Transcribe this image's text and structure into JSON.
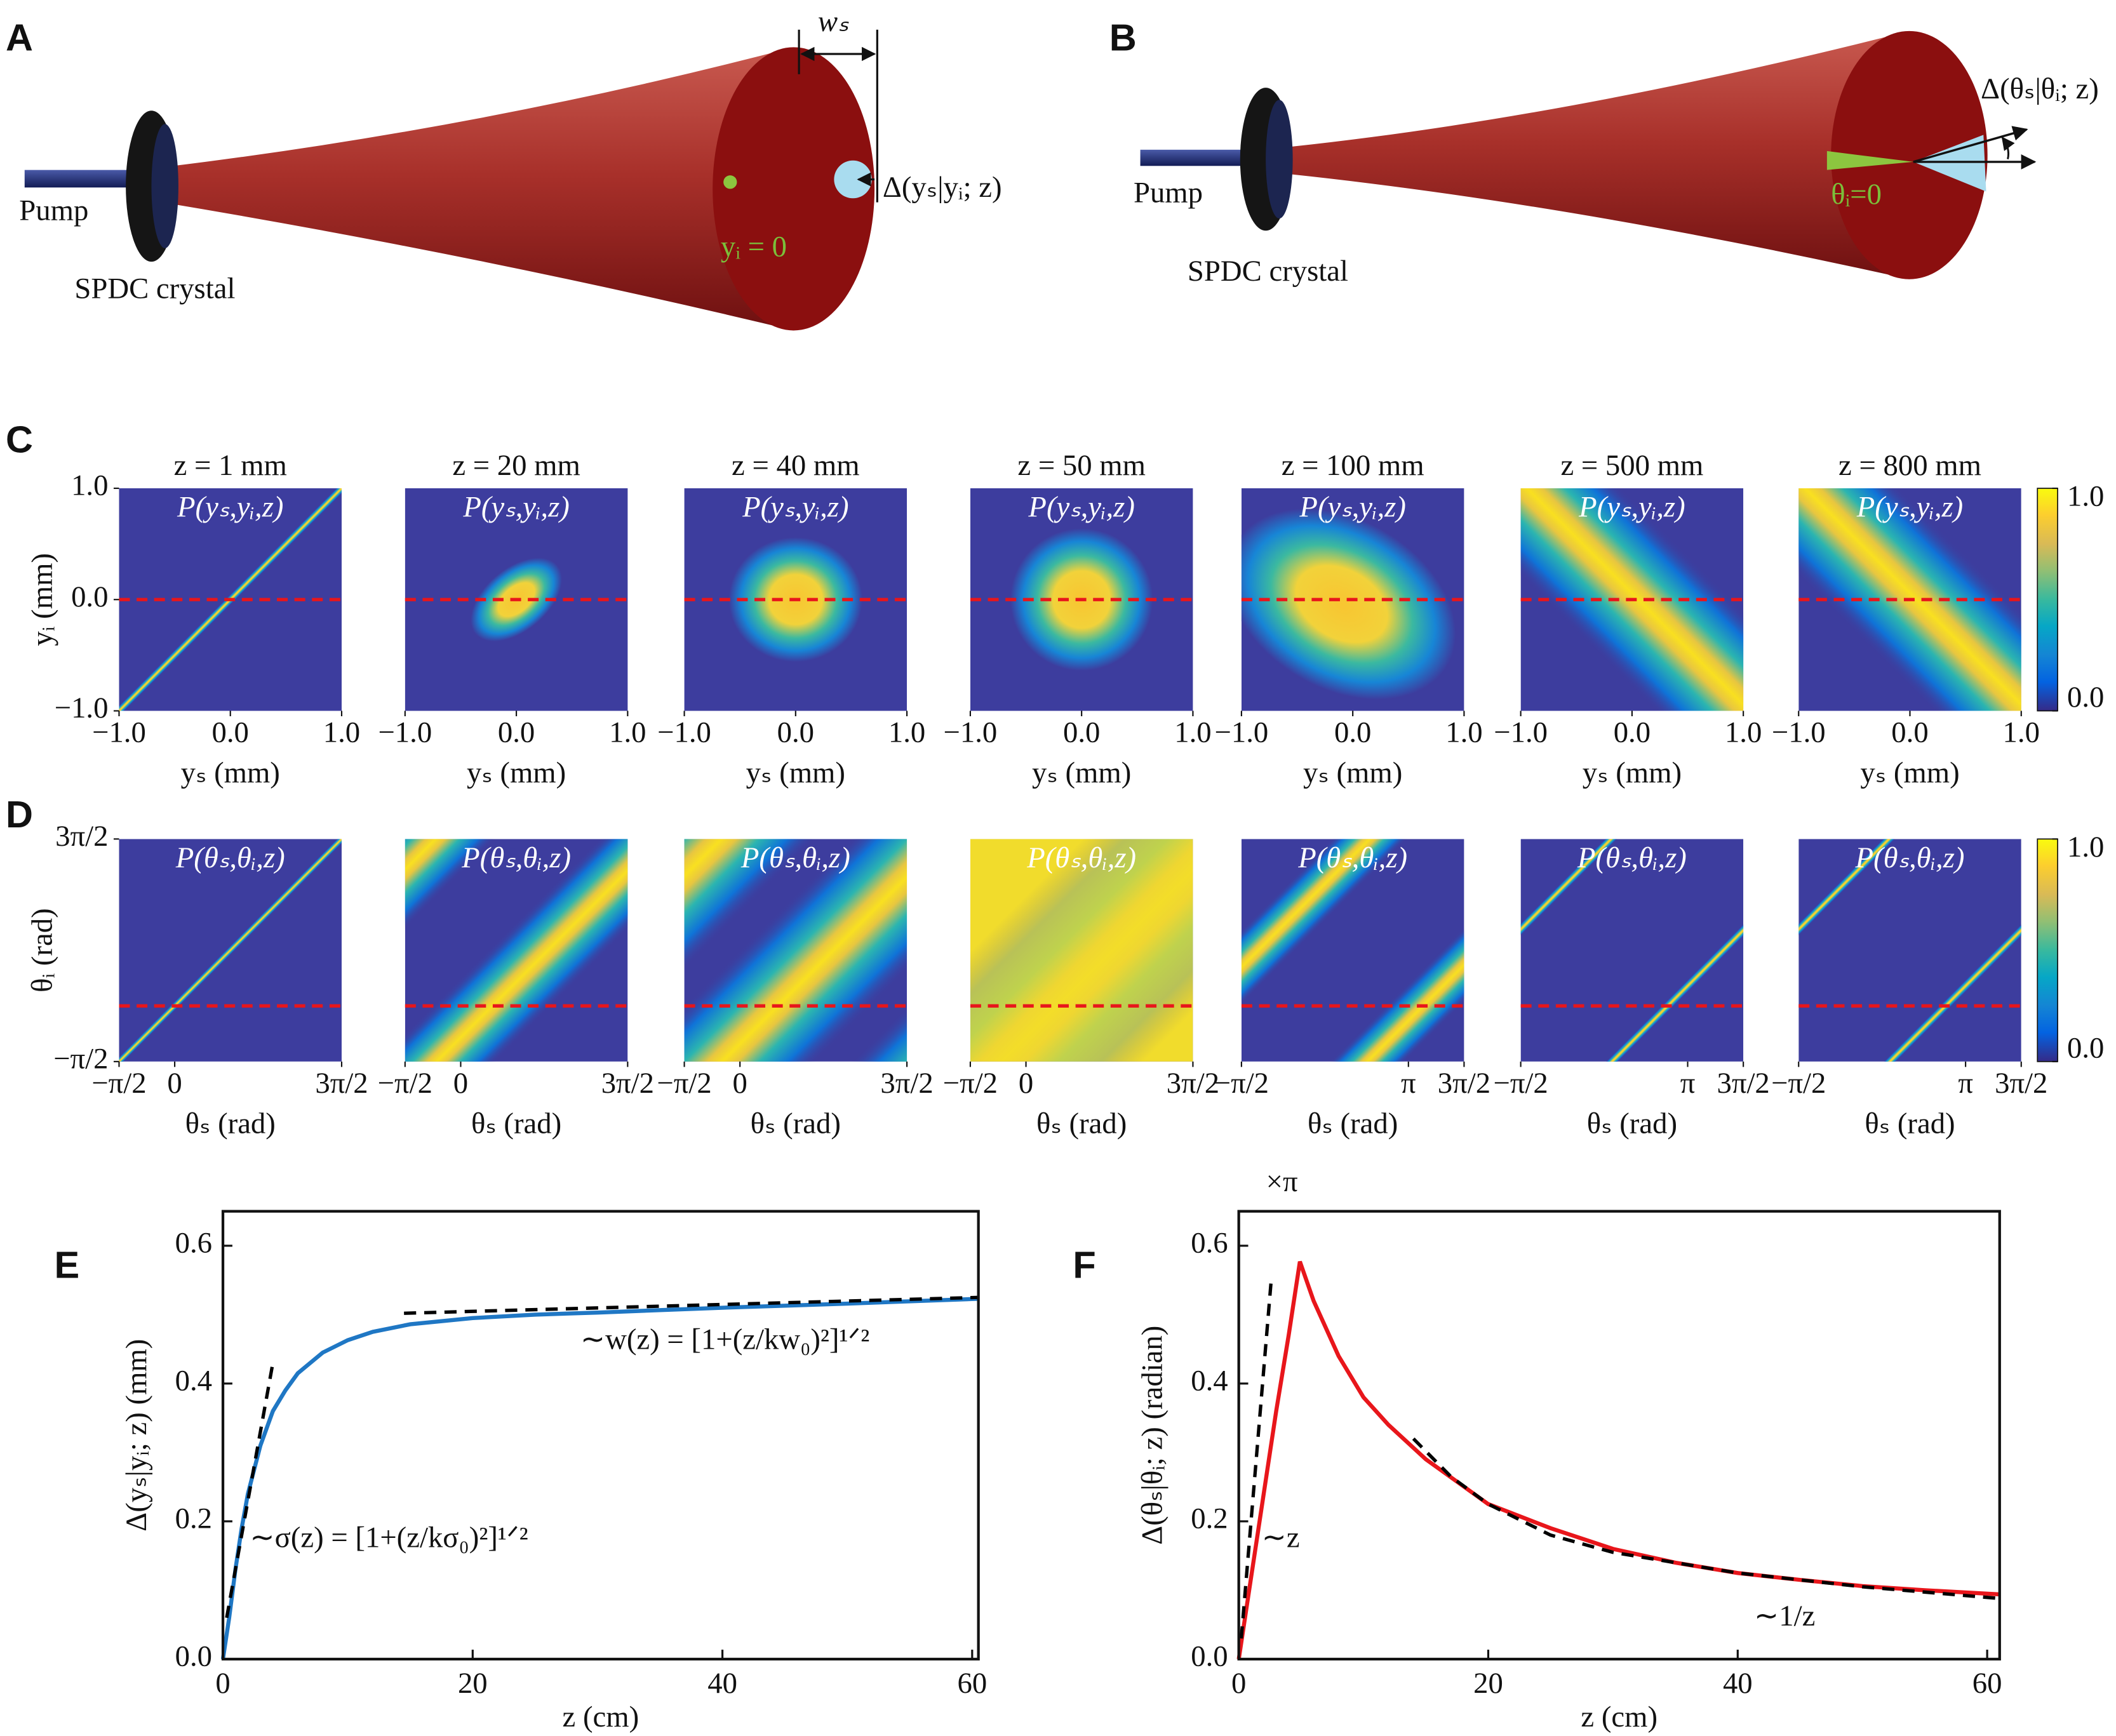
{
  "panel_a": {
    "letter": "A",
    "pump": "Pump",
    "crystal": "SPDC crystal",
    "width_label": "wₛ",
    "delta_label": "Δ(yₛ|yᵢ; z)",
    "origin_label": "yᵢ = 0"
  },
  "panel_b": {
    "letter": "B",
    "pump": "Pump",
    "crystal": "SPDC crystal",
    "delta_label": "Δ(θₛ|θᵢ; z)",
    "origin_label": "θᵢ=0"
  },
  "panel_c": {
    "letter": "C",
    "titles": [
      "z = 1 mm",
      "z = 20 mm",
      "z = 40 mm",
      "z = 50 mm",
      "z = 100 mm",
      "z = 500 mm",
      "z = 800 mm"
    ],
    "map_label": "P(yₛ,yᵢ,z)",
    "ylabel": "yᵢ (mm)",
    "xlabel": "yₛ (mm)",
    "lim": [
      -1,
      1
    ],
    "ticks": [
      {
        "value": -1,
        "label": "−1.0"
      },
      {
        "value": 0,
        "label": "0.0"
      },
      {
        "value": 1,
        "label": "1.0"
      }
    ],
    "colorbar_ticks": [
      {
        "value": 0,
        "label": "0.0"
      },
      {
        "value": 1,
        "label": "1.0"
      }
    ]
  },
  "panel_d": {
    "letter": "D",
    "map_label": "P(θₛ,θᵢ,z)",
    "ylabel": "θᵢ (rad)",
    "xlabel": "θₛ (rad)",
    "lim": [
      -1.5708,
      4.7124
    ],
    "yticks": [
      {
        "value": -1.5708,
        "label": "−π/2"
      },
      {
        "value": 4.7124,
        "label": "3π/2"
      }
    ],
    "xticks_near": [
      {
        "value": -1.5708,
        "label": "−π/2"
      },
      0,
      {
        "value": 4.7124,
        "label": "3π/2"
      }
    ],
    "xticks_far": [
      {
        "value": -1.5708,
        "label": "−π/2"
      },
      {
        "value": 3.1416,
        "label": "π"
      },
      {
        "value": 4.7124,
        "label": "3π/2"
      }
    ],
    "colorbar_ticks": [
      {
        "value": 0,
        "label": "0.0"
      },
      {
        "value": 1,
        "label": "1.0"
      }
    ]
  },
  "chart_data": [
    {
      "type": "line",
      "letter": "E",
      "xlabel": "z (cm)",
      "ylabel": "Δ(yₛ|yᵢ; z) (mm)",
      "xlim": [
        0,
        60.5
      ],
      "ylim": [
        0,
        0.65
      ],
      "xticks": [
        0,
        20,
        40,
        60
      ],
      "yticks": [
        {
          "value": 0,
          "label": "0.0"
        },
        0.2,
        0.4,
        0.6
      ],
      "series": [
        {
          "color": "#1f77c4",
          "dashed": false,
          "x": [
            0,
            0.5,
            1,
            1.5,
            2,
            3,
            4,
            5,
            6,
            8,
            10,
            12,
            15,
            20,
            25,
            30,
            40,
            50,
            60.5
          ],
          "values": [
            0,
            0.06,
            0.13,
            0.19,
            0.24,
            0.31,
            0.36,
            0.39,
            0.415,
            0.445,
            0.463,
            0.475,
            0.486,
            0.495,
            0.5,
            0.503,
            0.51,
            0.516,
            0.523
          ]
        },
        {
          "color": "#000000",
          "dashed": true,
          "x": [
            0.3,
            4
          ],
          "values": [
            0.06,
            0.43
          ]
        },
        {
          "color": "#000000",
          "dashed": true,
          "x": [
            14.5,
            60.5
          ],
          "values": [
            0.502,
            0.525
          ]
        }
      ],
      "annotations": [
        "∼w(z) = [1+(z/kw₀)²]¹ᐟ²",
        "∼σ(z) = [1+(z/kσ₀)²]¹ᐟ²"
      ]
    },
    {
      "type": "line",
      "letter": "F",
      "xlabel": "z (cm)",
      "ylabel": "Δ(θₛ|θᵢ; z)  (radian)",
      "multiplier": "×π",
      "xlim": [
        0,
        61
      ],
      "ylim": [
        0,
        0.65
      ],
      "xticks": [
        0,
        20,
        40,
        60
      ],
      "yticks": [
        {
          "value": 0,
          "label": "0.0"
        },
        0.2,
        0.4,
        0.6
      ],
      "series": [
        {
          "color": "#e8161b",
          "dashed": false,
          "x": [
            0,
            1,
            2,
            3,
            4,
            4.9,
            6,
            8,
            10,
            12,
            15,
            20,
            25,
            30,
            35,
            40,
            45,
            50,
            55,
            61
          ],
          "values": [
            0,
            0.12,
            0.24,
            0.36,
            0.47,
            0.577,
            0.52,
            0.44,
            0.38,
            0.34,
            0.29,
            0.225,
            0.19,
            0.16,
            0.14,
            0.125,
            0.115,
            0.106,
            0.1,
            0.094
          ]
        },
        {
          "color": "#000000",
          "dashed": true,
          "x": [
            0.2,
            2.6
          ],
          "values": [
            0.03,
            0.55
          ]
        },
        {
          "color": "#000000",
          "dashed": true,
          "x": [
            14,
            17,
            20,
            25,
            30,
            40,
            50,
            61
          ],
          "values": [
            0.32,
            0.265,
            0.225,
            0.18,
            0.155,
            0.125,
            0.105,
            0.088
          ]
        }
      ],
      "annotations": [
        "∼z",
        "∼1/z"
      ]
    }
  ]
}
